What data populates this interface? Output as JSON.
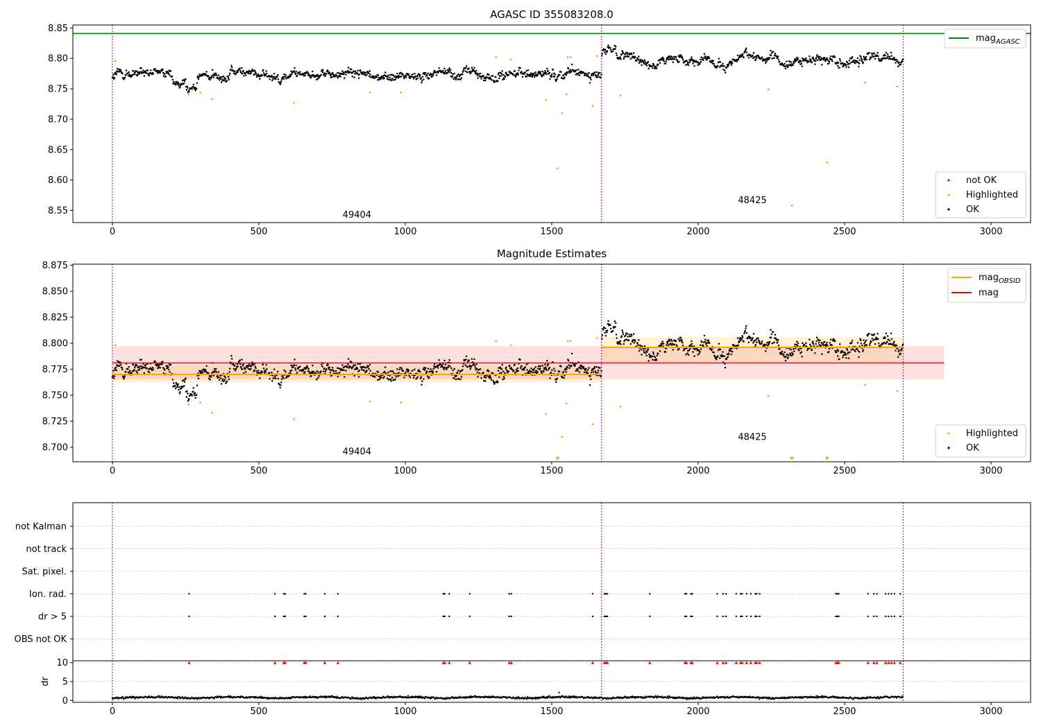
{
  "figure": {
    "x_ticks": [
      0,
      500,
      1000,
      1500,
      2000,
      2500,
      3000
    ],
    "x_range": [
      -135,
      3135
    ],
    "obs_boundaries": [
      0,
      1670,
      2700
    ]
  },
  "chart_data": [
    {
      "id": "agasc",
      "type": "scatter",
      "title": "AGASC ID 355083208.0",
      "ylim": [
        8.53,
        8.855
      ],
      "yticks": [
        8.55,
        8.6,
        8.65,
        8.7,
        8.75,
        8.8,
        8.85
      ],
      "ytick_labels": [
        "8.55",
        "8.60",
        "8.65",
        "8.70",
        "8.75",
        "8.80",
        "8.85"
      ],
      "mag_agasc": 8.841,
      "obsid_labels": [
        {
          "text": "49404",
          "x": 835,
          "y": 8.538
        },
        {
          "text": "48425",
          "x": 2185,
          "y": 8.562
        }
      ],
      "highlighted_points": [
        [
          10,
          8.796
        ],
        [
          260,
          8.741
        ],
        [
          300,
          8.744
        ],
        [
          340,
          8.733
        ],
        [
          620,
          8.727
        ],
        [
          880,
          8.744
        ],
        [
          985,
          8.744
        ],
        [
          1310,
          8.802
        ],
        [
          1360,
          8.798
        ],
        [
          1480,
          8.732
        ],
        [
          1520,
          8.619
        ],
        [
          1535,
          8.71
        ],
        [
          1550,
          8.741
        ],
        [
          1555,
          8.802
        ],
        [
          1565,
          8.802
        ],
        [
          1640,
          8.722
        ],
        [
          1655,
          8.804
        ],
        [
          1735,
          8.739
        ],
        [
          2240,
          8.749
        ],
        [
          2320,
          8.558
        ],
        [
          2440,
          8.629
        ],
        [
          2570,
          8.76
        ],
        [
          2680,
          8.754
        ]
      ],
      "legend_top": {
        "entries": [
          "mag_AGASC"
        ],
        "placement": "top-right"
      },
      "legend_bottom": {
        "entries": [
          "not OK",
          "Highlighted",
          "OK"
        ],
        "placement": "bottom-right"
      }
    },
    {
      "id": "estimates",
      "type": "scatter",
      "title": "Magnitude Estimates",
      "ylim": [
        8.686,
        8.876
      ],
      "yticks": [
        8.7,
        8.725,
        8.75,
        8.775,
        8.8,
        8.825,
        8.85,
        8.875
      ],
      "ytick_labels": [
        "8.700",
        "8.725",
        "8.750",
        "8.775",
        "8.800",
        "8.825",
        "8.850",
        "8.875"
      ],
      "mag_mean": 8.781,
      "mag_band": [
        8.765,
        8.797
      ],
      "mag_range_x": [
        0,
        2840
      ],
      "obsid_segments": [
        {
          "x0": 0,
          "x1": 1670,
          "mean": 8.77,
          "band": [
            8.762,
            8.778
          ]
        },
        {
          "x0": 1670,
          "x1": 2700,
          "mean": 8.796,
          "band": [
            8.782,
            8.806
          ]
        }
      ],
      "obsid_labels": [
        {
          "text": "49404",
          "x": 835,
          "y": 8.693
        },
        {
          "text": "48425",
          "x": 2185,
          "y": 8.707
        }
      ],
      "highlighted_points": [
        [
          10,
          8.798
        ],
        [
          260,
          8.741
        ],
        [
          300,
          8.743
        ],
        [
          340,
          8.733
        ],
        [
          620,
          8.727
        ],
        [
          880,
          8.744
        ],
        [
          985,
          8.743
        ],
        [
          1310,
          8.802
        ],
        [
          1360,
          8.798
        ],
        [
          1480,
          8.732
        ],
        [
          1535,
          8.71
        ],
        [
          1550,
          8.742
        ],
        [
          1555,
          8.802
        ],
        [
          1565,
          8.802
        ],
        [
          1640,
          8.722
        ],
        [
          1655,
          8.805
        ],
        [
          1735,
          8.739
        ],
        [
          2240,
          8.749
        ],
        [
          2570,
          8.76
        ],
        [
          2680,
          8.754
        ]
      ],
      "below_range_markers": [
        1520,
        2320,
        2440
      ],
      "legend_top": {
        "entries": [
          "mag_OBSID",
          "mag"
        ],
        "placement": "top-right"
      },
      "legend_bottom": {
        "entries": [
          "Highlighted",
          "OK"
        ],
        "placement": "bottom-right"
      }
    },
    {
      "id": "flags",
      "type": "scatter",
      "categories": [
        "not Kalman",
        "not track",
        "Sat. pixel.",
        "Ion. rad.",
        "dr > 5",
        "OBS not OK"
      ],
      "flag_x": [
        262,
        555,
        585,
        590,
        655,
        660,
        725,
        770,
        1130,
        1135,
        1150,
        1220,
        1355,
        1362,
        1640,
        1680,
        1685,
        1690,
        1835,
        1955,
        1960,
        1975,
        1980,
        2065,
        2085,
        2095,
        2130,
        2145,
        2150,
        2165,
        2180,
        2195,
        2200,
        2210,
        2470,
        2475,
        2480,
        2580,
        2600,
        2610,
        2640,
        2650,
        2660,
        2670,
        2690
      ]
    },
    {
      "id": "dr",
      "type": "scatter",
      "ylabel": "dr",
      "ylim": [
        -0.5,
        10.5
      ],
      "yticks": [
        0,
        5,
        10
      ],
      "ytick_labels": [
        "0",
        "5",
        "10"
      ],
      "outlier_points": [
        [
          1525,
          2.1
        ]
      ]
    }
  ]
}
